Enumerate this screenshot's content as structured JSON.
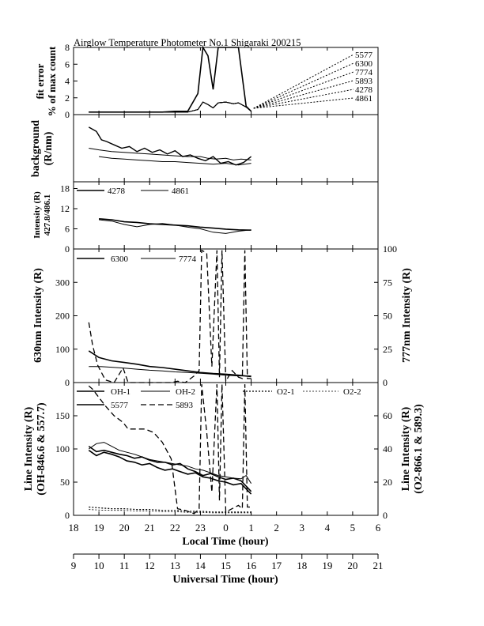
{
  "chart_data": [
    {
      "type": "line",
      "title": "Airglow Temperature Photometer No.1  Shigaraki  200215",
      "ylabel": [
        "fit error",
        "% of max count"
      ],
      "ylim": [
        0,
        8
      ],
      "yticks": [
        "0",
        "2",
        "4",
        "6",
        "8"
      ],
      "legend_labels": [
        "5577",
        "6300",
        "7774",
        "5893",
        "4278",
        "4861"
      ],
      "legend_placement": "right, dashed leaders",
      "series": [
        {
          "x": [
            18.6,
            19,
            19.5,
            20,
            20.5,
            21,
            21.5,
            22,
            22.5,
            22.9,
            23.1,
            23.3,
            23.5,
            23.7,
            24,
            24.3,
            24.5,
            24.8,
            25
          ],
          "values": [
            0.3,
            0.3,
            0.3,
            0.3,
            0.3,
            0.3,
            0.3,
            0.4,
            0.4,
            2.5,
            8,
            7,
            3,
            8,
            8,
            8,
            8,
            1,
            0.4
          ]
        },
        {
          "x": [
            18.6,
            19,
            19.5,
            20,
            20.5,
            21,
            21.5,
            22,
            22.5,
            22.9,
            23.1,
            23.3,
            23.5,
            23.7,
            24,
            24.3,
            24.5,
            24.8,
            25
          ],
          "values": [
            0.3,
            0.3,
            0.3,
            0.3,
            0.3,
            0.3,
            0.3,
            0.3,
            0.3,
            0.6,
            1.5,
            1.2,
            0.8,
            1.4,
            1.5,
            1.3,
            1.4,
            0.9,
            0.4
          ]
        },
        {
          "x": [
            18.6,
            19,
            19.5,
            20,
            20.5,
            21,
            21.5,
            22,
            22.5,
            22.9,
            23.1,
            23.3,
            23.5,
            23.7,
            24,
            24.3,
            24.5,
            24.8,
            25
          ],
          "values": [
            0.3,
            0.3,
            0.3,
            0.3,
            0.3,
            0.3,
            0.3,
            0.3,
            0.3,
            0.6,
            1.5,
            1.2,
            0.8,
            1.4,
            1.5,
            1.3,
            1.4,
            0.9,
            0.4
          ]
        },
        {
          "x": [
            18.6,
            19,
            19.5,
            20,
            20.5,
            21,
            21.5,
            22,
            22.5,
            22.9,
            23.1,
            23.3,
            23.5,
            23.7,
            24,
            24.3,
            24.5,
            24.8,
            25
          ],
          "values": [
            0.3,
            0.3,
            0.3,
            0.3,
            0.3,
            0.3,
            0.3,
            0.3,
            0.3,
            0.6,
            1.5,
            1.2,
            0.8,
            1.4,
            1.5,
            1.3,
            1.4,
            0.9,
            0.4
          ]
        },
        {
          "x": [
            18.6,
            19,
            19.5,
            20,
            20.5,
            21,
            21.5,
            22,
            22.5,
            22.9,
            23.1,
            23.3,
            23.5,
            23.7,
            24,
            24.3,
            24.5,
            24.8,
            25
          ],
          "values": [
            0.3,
            0.3,
            0.3,
            0.3,
            0.3,
            0.3,
            0.3,
            0.3,
            0.3,
            0.6,
            1.5,
            1.2,
            0.8,
            1.4,
            1.5,
            1.3,
            1.4,
            0.9,
            0.4
          ]
        },
        {
          "x": [
            18.6,
            19,
            19.5,
            20,
            20.5,
            21,
            21.5,
            22,
            22.5,
            22.9,
            23.1,
            23.3,
            23.5,
            23.7,
            24,
            24.3,
            24.5,
            24.8,
            25
          ],
          "values": [
            0.3,
            0.3,
            0.3,
            0.3,
            0.3,
            0.3,
            0.3,
            0.3,
            0.3,
            0.6,
            1.5,
            1.2,
            0.8,
            1.4,
            1.5,
            1.3,
            1.4,
            0.9,
            0.4
          ]
        }
      ]
    },
    {
      "type": "line",
      "ylabel": [
        "background",
        "(R/nm)"
      ],
      "ylim": [
        0,
        80
      ],
      "yticks": [],
      "series": [
        {
          "x": [
            18.6,
            18.9,
            19.1,
            19.3,
            19.6,
            19.9,
            20.2,
            20.5,
            20.8,
            21.1,
            21.4,
            21.7,
            22,
            22.3,
            22.6,
            22.9,
            23.2,
            23.5,
            23.8,
            24.1,
            24.4,
            24.7,
            25
          ],
          "values": [
            65,
            60,
            50,
            48,
            44,
            40,
            42,
            36,
            40,
            35,
            38,
            33,
            37,
            30,
            32,
            28,
            25,
            30,
            22,
            24,
            20,
            23,
            30
          ]
        },
        {
          "x": [
            19,
            19.5,
            20,
            20.5,
            21,
            21.5,
            22,
            22.5,
            23,
            23.5,
            24,
            24.5,
            25
          ],
          "values": [
            30,
            28,
            27,
            26,
            25,
            24,
            24,
            23,
            22,
            21,
            22,
            20,
            22
          ]
        },
        {
          "x": [
            18.6,
            19,
            19.5,
            20,
            20.5,
            21,
            21.5,
            22,
            22.5,
            23,
            23.3,
            23.6,
            24,
            24.3,
            24.6,
            25
          ],
          "values": [
            40,
            38,
            36,
            35,
            34,
            33,
            32,
            31,
            30,
            30,
            28,
            27,
            28,
            26,
            27,
            26
          ]
        }
      ]
    },
    {
      "type": "line",
      "ylabel": [
        "Intensity (R)",
        "427.8/486.1"
      ],
      "ylim": [
        0,
        20
      ],
      "yticks": [
        "0",
        "6",
        "12",
        "18"
      ],
      "legend_labels": [
        "4278",
        "4861"
      ],
      "legend_placement": "top-left",
      "series": [
        {
          "name": "4278",
          "x": [
            19,
            19.5,
            20,
            20.5,
            21,
            21.5,
            22,
            22.5,
            23,
            23.5,
            24,
            24.5,
            25
          ],
          "values": [
            9,
            8.7,
            8.1,
            7.9,
            7.5,
            7.3,
            7.1,
            6.9,
            6.5,
            6.2,
            5.9,
            5.7,
            5.6
          ]
        },
        {
          "name": "4861",
          "x": [
            19,
            19.5,
            20,
            20.5,
            21,
            21.5,
            22,
            22.5,
            23,
            23.5,
            24,
            24.5,
            25
          ],
          "values": [
            8.7,
            8.3,
            7.3,
            6.6,
            7.3,
            7.6,
            7.1,
            6.5,
            6,
            5,
            4.6,
            5.3,
            5.7
          ]
        }
      ]
    },
    {
      "type": "line",
      "ylabel": "630nm Intensity (R)",
      "ylabel_right": "777nm Intensity (R)",
      "ylim": [
        0,
        400
      ],
      "yticks": [
        "0",
        "100",
        "200",
        "300"
      ],
      "ylim_right": [
        0,
        100
      ],
      "yticks_right": [
        "0",
        "25",
        "50",
        "75",
        "100"
      ],
      "legend_labels": [
        "6300",
        "7774"
      ],
      "legend_placement": "top-left",
      "series": [
        {
          "name": "6300",
          "x": [
            18.6,
            19,
            19.5,
            20,
            20.5,
            21,
            21.5,
            22,
            22.5,
            23,
            23.5,
            24,
            24.5,
            25
          ],
          "values": [
            95,
            75,
            65,
            60,
            55,
            48,
            45,
            40,
            35,
            30,
            27,
            25,
            22,
            18
          ]
        },
        {
          "name": "7774",
          "x": [
            18.6,
            19,
            19.5,
            20,
            20.5,
            21,
            21.5,
            22,
            22.5,
            23,
            23.5,
            24,
            24.5,
            25
          ],
          "values": [
            48,
            48,
            46,
            43,
            40,
            37,
            35,
            32,
            30,
            28,
            25,
            22,
            20,
            20
          ]
        },
        {
          "x": [
            18.6,
            18.75,
            18.95,
            19.25,
            19.6,
            19.95,
            20.15,
            20.8,
            21.15,
            21.5,
            21.85,
            22.1,
            22.4,
            22.75,
            22.95,
            23.05,
            23.25,
            23.45,
            23.65,
            23.75,
            23.85,
            24,
            24.25,
            24.5,
            24.65,
            24.75,
            24.85,
            25
          ],
          "values": [
            45,
            28,
            13,
            2,
            0,
            11,
            0,
            0,
            0,
            0,
            0,
            1,
            0,
            5,
            9,
            99,
            97,
            12,
            99,
            4,
            99,
            1,
            9,
            4,
            3,
            99,
            3,
            3
          ]
        }
      ]
    },
    {
      "type": "line",
      "ylabel": [
        "Line Intensity (R)",
        "(OH-846.6 & 557.7)"
      ],
      "ylabel_right": [
        "Line Intensity (R)",
        "(O2-866.1 & 589.3)"
      ],
      "ylim": [
        0,
        200
      ],
      "yticks": [
        "0",
        "50",
        "100",
        "150"
      ],
      "ylim_right": [
        0,
        80
      ],
      "yticks_right": [
        "0",
        "20",
        "40",
        "60"
      ],
      "legend_labels": [
        "OH-1",
        "OH-2",
        "O2-1",
        "O2-2",
        "5577",
        "5893"
      ],
      "legend_placement": "top",
      "x_ticklabels": [
        "18",
        "19",
        "20",
        "21",
        "22",
        "23",
        "0",
        "1",
        "2",
        "3",
        "4",
        "5",
        "6"
      ],
      "xlabel": "Local Time (hour)",
      "x2_ticklabels": [
        "9",
        "10",
        "11",
        "12",
        "13",
        "14",
        "15",
        "16",
        "17",
        "18",
        "19",
        "20",
        "21"
      ],
      "x2label": "Universal Time (hour)",
      "series": [
        {
          "name": "OH-1",
          "x": [
            18.6,
            18.9,
            19.2,
            19.5,
            19.8,
            20.1,
            20.4,
            20.7,
            21,
            21.3,
            21.6,
            21.9,
            22.2,
            22.5,
            22.8,
            23.1,
            23.4,
            23.7,
            24,
            24.3,
            24.6,
            24.8,
            25
          ],
          "values": [
            104,
            96,
            98,
            95,
            92,
            90,
            86,
            88,
            83,
            80,
            80,
            76,
            78,
            70,
            66,
            60,
            63,
            58,
            54,
            56,
            52,
            44,
            36
          ]
        },
        {
          "name": "OH-2",
          "x": [
            18.6,
            18.9,
            19.2,
            19.5,
            19.8,
            20.1,
            20.4,
            20.7,
            21,
            21.3,
            21.6,
            21.9,
            22.2,
            22.5,
            22.8,
            23.1,
            23.4,
            23.7,
            24,
            24.3,
            24.6,
            24.8,
            25
          ],
          "values": [
            100,
            108,
            110,
            104,
            98,
            95,
            92,
            88,
            84,
            82,
            80,
            78,
            76,
            74,
            70,
            68,
            64,
            60,
            58,
            56,
            55,
            60,
            48
          ]
        },
        {
          "name": "5577",
          "x": [
            18.6,
            18.9,
            19.2,
            19.5,
            19.8,
            20.1,
            20.4,
            20.7,
            21,
            21.3,
            21.6,
            21.9,
            22.2,
            22.5,
            22.8,
            23.1,
            23.4,
            23.7,
            24,
            24.3,
            24.6,
            24.8,
            25
          ],
          "values": [
            98,
            90,
            95,
            92,
            88,
            82,
            80,
            76,
            78,
            72,
            68,
            70,
            66,
            62,
            64,
            58,
            56,
            52,
            50,
            46,
            48,
            40,
            32
          ]
        },
        {
          "name": "O2-1",
          "x": [
            18.6,
            19,
            19.5,
            20,
            20.5,
            21,
            21.5,
            22,
            22.5,
            23,
            23.5,
            24,
            24.5,
            25
          ],
          "values": [
            5,
            4.5,
            4,
            4,
            3.5,
            3.5,
            3,
            3,
            2.5,
            2.5,
            2,
            2,
            2,
            2
          ]
        },
        {
          "name": "O2-2",
          "x": [
            18.6,
            19,
            19.5,
            20,
            20.5,
            21,
            21.5,
            22,
            22.5,
            23,
            23.5,
            24,
            24.5,
            25
          ],
          "values": [
            3.5,
            3.2,
            3,
            3,
            2.6,
            2.6,
            2.2,
            2.2,
            1.8,
            1.8,
            1.5,
            1.5,
            1.5,
            1.5
          ]
        },
        {
          "name": "5893",
          "x": [
            18.6,
            18.75,
            18.95,
            19.25,
            19.6,
            19.95,
            20.15,
            20.8,
            21.15,
            21.5,
            21.85,
            22.1,
            22.4,
            22.75,
            22.95,
            23.05,
            23.25,
            23.45,
            23.65,
            23.75,
            23.85,
            24,
            24.25,
            24.5,
            24.65,
            24.75,
            24.85,
            25
          ],
          "values": [
            78,
            76,
            72,
            66,
            60,
            56,
            52,
            52,
            50,
            44,
            34,
            4,
            3,
            1,
            4,
            79,
            50,
            14,
            79,
            9,
            79,
            2,
            4,
            6,
            4,
            79,
            5,
            5
          ]
        }
      ]
    }
  ]
}
